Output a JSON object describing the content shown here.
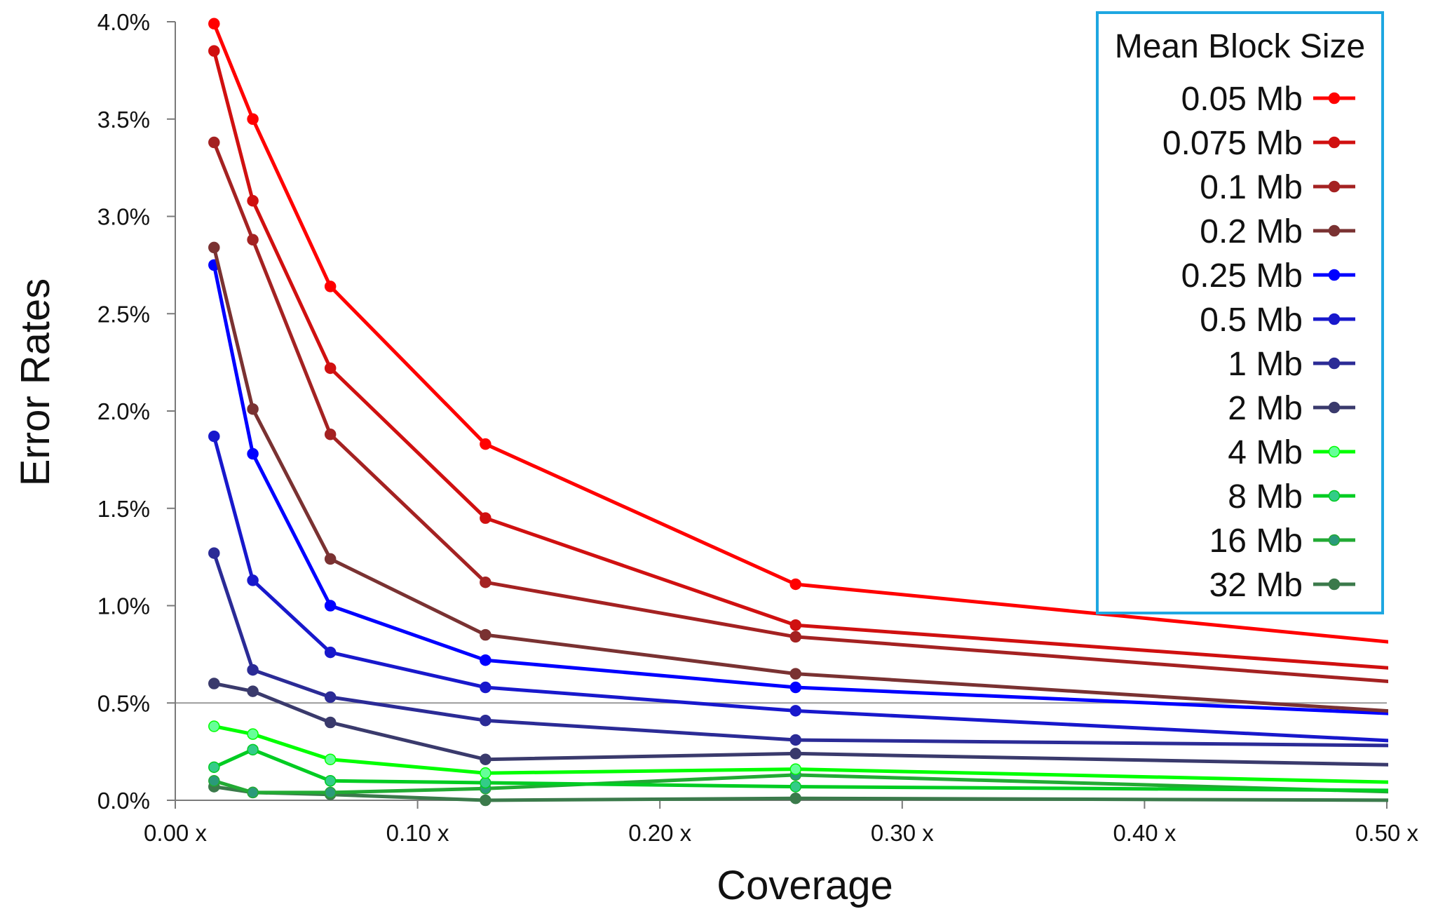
{
  "chart_data": {
    "type": "line",
    "title": "",
    "xlabel": "Coverage",
    "ylabel": "Error Rates",
    "xlim": [
      0,
      0.5
    ],
    "ylim": [
      0,
      0.04
    ],
    "x_ticks": [
      0,
      0.1,
      0.2,
      0.3,
      0.4,
      0.5
    ],
    "x_tick_labels": [
      "0.00 x",
      "0.10 x",
      "0.20 x",
      "0.30 x",
      "0.40 x",
      "0.50 x"
    ],
    "y_ticks": [
      0,
      0.005,
      0.01,
      0.015,
      0.02,
      0.025,
      0.03,
      0.035,
      0.04
    ],
    "y_tick_labels": [
      "0.0%",
      "0.5%",
      "1.0%",
      "1.5%",
      "2.0%",
      "2.5%",
      "3.0%",
      "3.5%",
      "4.0%"
    ],
    "reference_line_y": 0.005,
    "grid": false,
    "legend": {
      "title": "Mean Block Size",
      "position": "top-right",
      "border_color": "#1ea7e1"
    },
    "x": [
      0.016,
      0.032,
      0.064,
      0.128,
      0.256,
      0.512
    ],
    "series": [
      {
        "name": "0.05 Mb",
        "color": "#ff0000",
        "marker_fill": "#ff0000",
        "values": [
          0.0399,
          0.035,
          0.0264,
          0.0183,
          0.0111,
          0.008
        ]
      },
      {
        "name": "0.075 Mb",
        "color": "#d01010",
        "marker_fill": "#d01010",
        "values": [
          0.0385,
          0.0308,
          0.0222,
          0.0145,
          0.009,
          0.0067
        ]
      },
      {
        "name": "0.1 Mb",
        "color": "#a42222",
        "marker_fill": "#a42222",
        "values": [
          0.0338,
          0.0288,
          0.0188,
          0.0112,
          0.0084,
          0.006
        ]
      },
      {
        "name": "0.2 Mb",
        "color": "#7a3232",
        "marker_fill": "#7a3232",
        "values": [
          0.0284,
          0.0201,
          0.0124,
          0.0085,
          0.0065,
          0.0045
        ]
      },
      {
        "name": "0.25 Mb",
        "color": "#0000ff",
        "marker_fill": "#0000ff",
        "values": [
          0.0275,
          0.0178,
          0.01,
          0.0072,
          0.0058,
          0.0044
        ]
      },
      {
        "name": "0.5 Mb",
        "color": "#1818cc",
        "marker_fill": "#1818cc",
        "values": [
          0.0187,
          0.0113,
          0.0076,
          0.0058,
          0.0046,
          0.003
        ]
      },
      {
        "name": "1 Mb",
        "color": "#2b2b96",
        "marker_fill": "#2b2b96",
        "values": [
          0.0127,
          0.0067,
          0.0053,
          0.0041,
          0.0031,
          0.0028
        ]
      },
      {
        "name": "2 Mb",
        "color": "#3a3a6c",
        "marker_fill": "#3a3a6c",
        "values": [
          0.006,
          0.0056,
          0.004,
          0.0021,
          0.0024,
          0.0018
        ]
      },
      {
        "name": "4 Mb",
        "color": "#00ff00",
        "marker_fill": "#66ff99",
        "values": [
          0.0038,
          0.0034,
          0.0021,
          0.0014,
          0.0016,
          0.0009
        ]
      },
      {
        "name": "8 Mb",
        "color": "#00cc22",
        "marker_fill": "#33cc88",
        "values": [
          0.0017,
          0.0026,
          0.001,
          0.0009,
          0.0007,
          0.0005
        ]
      },
      {
        "name": "16 Mb",
        "color": "#22aa33",
        "marker_fill": "#2a9a7a",
        "values": [
          0.001,
          0.0004,
          0.0004,
          0.0006,
          0.0013,
          0.0004
        ]
      },
      {
        "name": "32 Mb",
        "color": "#3b7a4b",
        "marker_fill": "#3b7a4b",
        "values": [
          0.0007,
          0.0004,
          0.0003,
          0.0,
          0.0001,
          0.0
        ]
      }
    ]
  }
}
